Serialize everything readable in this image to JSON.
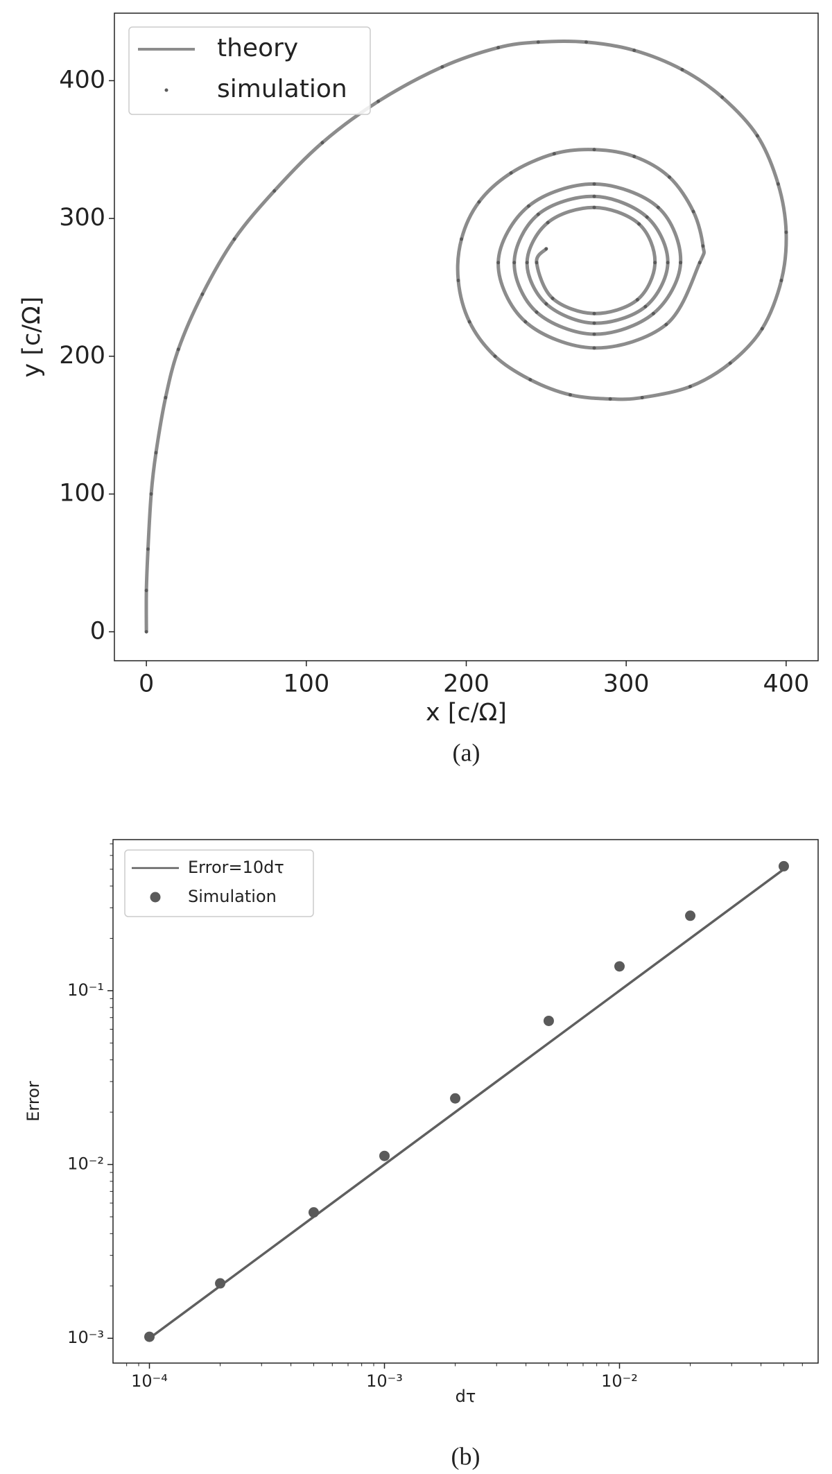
{
  "chart_data": [
    {
      "type": "line",
      "caption": "(a)",
      "xlabel": "x [c/Ω]",
      "ylabel": "y [c/Ω]",
      "xscale": "linear",
      "yscale": "linear",
      "xlim": [
        -20,
        420
      ],
      "ylim": [
        -21,
        449
      ],
      "xticks": [
        0,
        100,
        200,
        300,
        400
      ],
      "yticks": [
        0,
        100,
        200,
        300,
        400
      ],
      "xminorticks": [],
      "yminorticks": [],
      "legend": "upper left",
      "series": [
        {
          "name": "theory",
          "type": "line",
          "color": "#8c8c8c",
          "x": [
            0,
            0,
            1,
            3,
            6,
            12,
            20,
            35,
            55,
            80,
            110,
            145,
            185,
            220,
            245,
            275,
            305,
            335,
            360,
            382,
            395,
            400,
            397,
            385,
            365,
            340,
            310,
            290,
            265,
            240,
            218,
            202,
            195,
            197,
            208,
            228,
            255,
            280,
            305,
            327,
            342,
            348,
            346,
            325,
            280,
            237,
            220,
            239,
            280,
            320,
            334,
            317,
            280,
            244,
            230,
            245,
            280,
            313,
            326,
            312,
            280,
            250,
            238,
            251,
            280,
            308,
            318,
            307,
            280,
            254,
            244,
            250
          ],
          "values": [
            0,
            30,
            60,
            100,
            130,
            170,
            205,
            245,
            285,
            320,
            355,
            385,
            410,
            424,
            428,
            428,
            422,
            408,
            388,
            360,
            325,
            290,
            255,
            220,
            195,
            178,
            170,
            169,
            172,
            183,
            200,
            225,
            255,
            285,
            312,
            333,
            347,
            350,
            345,
            330,
            305,
            280,
            268,
            223,
            206,
            225,
            268,
            309,
            325,
            308,
            268,
            231,
            216,
            232,
            268,
            303,
            316,
            301,
            268,
            236,
            224,
            238,
            268,
            297,
            308,
            296,
            268,
            241,
            231,
            242,
            268,
            278
          ]
        },
        {
          "name": "simulation",
          "type": "scatter",
          "color": "#5a5a5a",
          "x": [
            0,
            0,
            1,
            3,
            6,
            12,
            20,
            35,
            55,
            80,
            110,
            145,
            185,
            220,
            245,
            275,
            305,
            335,
            360,
            382,
            395,
            400,
            397,
            385,
            365,
            340,
            310,
            290,
            265,
            240,
            218,
            202,
            195,
            197,
            208,
            228,
            255,
            280,
            305,
            327,
            342,
            348,
            346,
            325,
            280,
            237,
            220,
            239,
            280,
            320,
            334,
            317,
            280,
            244,
            230,
            245,
            280,
            313,
            326,
            312,
            280,
            250,
            238,
            251,
            280,
            308,
            318,
            307,
            280,
            254,
            244,
            250
          ],
          "values": [
            0,
            30,
            60,
            100,
            130,
            170,
            205,
            245,
            285,
            320,
            355,
            385,
            410,
            424,
            428,
            428,
            422,
            408,
            388,
            360,
            325,
            290,
            255,
            220,
            195,
            178,
            170,
            169,
            172,
            183,
            200,
            225,
            255,
            285,
            312,
            333,
            347,
            350,
            345,
            330,
            305,
            280,
            268,
            223,
            206,
            225,
            268,
            309,
            325,
            308,
            268,
            231,
            216,
            232,
            268,
            303,
            316,
            301,
            268,
            236,
            224,
            238,
            268,
            297,
            308,
            296,
            268,
            241,
            231,
            242,
            268,
            278
          ]
        }
      ]
    },
    {
      "type": "line",
      "caption": "(b)",
      "xlabel": "dτ",
      "ylabel": "Error",
      "xscale": "log",
      "yscale": "log",
      "xlim": [
        7e-05,
        0.07
      ],
      "ylim": [
        0.00072,
        0.74
      ],
      "xticks": [
        {
          "value": 0.0001,
          "label": "10⁻⁴"
        },
        {
          "value": 0.001,
          "label": "10⁻³"
        },
        {
          "value": 0.01,
          "label": "10⁻²"
        }
      ],
      "yticks": [
        {
          "value": 0.001,
          "label": "10⁻³"
        },
        {
          "value": 0.01,
          "label": "10⁻²"
        },
        {
          "value": 0.1,
          "label": "10⁻¹"
        }
      ],
      "xminorticks": [
        8e-05,
        9e-05,
        0.0002,
        0.0003,
        0.0004,
        0.0005,
        0.0006,
        0.0007,
        0.0008,
        0.0009,
        0.002,
        0.003,
        0.004,
        0.005,
        0.006,
        0.007,
        0.008,
        0.009,
        0.02,
        0.03,
        0.04,
        0.05,
        0.06
      ],
      "yminorticks": [
        0.002,
        0.003,
        0.004,
        0.005,
        0.006,
        0.007,
        0.008,
        0.009,
        0.02,
        0.03,
        0.04,
        0.05,
        0.06,
        0.07,
        0.08,
        0.09,
        0.2,
        0.3,
        0.4,
        0.5,
        0.6,
        0.7
      ],
      "legend": "upper left",
      "series": [
        {
          "name": "Error=10dτ",
          "type": "line",
          "color": "#5f5f5f",
          "x": [
            0.0001,
            0.05
          ],
          "values": [
            0.001,
            0.5
          ]
        },
        {
          "name": "Simulation",
          "type": "scatter",
          "color": "#5a5a5a",
          "x": [
            0.0001,
            0.0002,
            0.0005,
            0.001,
            0.002,
            0.005,
            0.01,
            0.02,
            0.05
          ],
          "values": [
            0.00102,
            0.00207,
            0.0053,
            0.0112,
            0.024,
            0.067,
            0.138,
            0.27,
            0.52
          ]
        }
      ]
    }
  ]
}
